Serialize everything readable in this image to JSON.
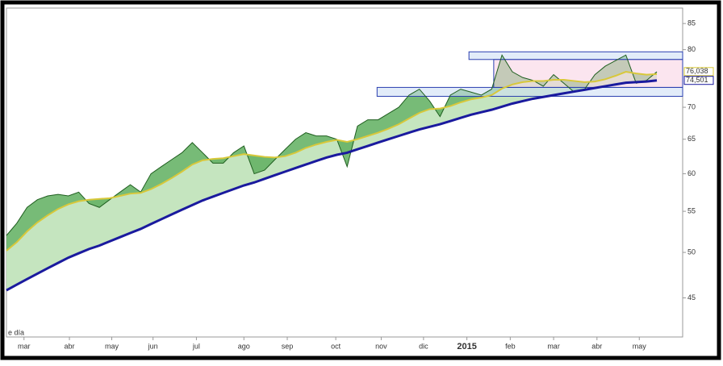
{
  "chart_data": {
    "type": "line",
    "log_scale": true,
    "ylim": [
      41.1,
      88.1
    ],
    "yticks": [
      45,
      50,
      55,
      60,
      65,
      70,
      80,
      85
    ],
    "xlim": [
      0,
      65.5
    ],
    "xticks": [
      {
        "value": 1.7,
        "label": "mar"
      },
      {
        "value": 6.1,
        "label": "abr"
      },
      {
        "value": 10.2,
        "label": "may"
      },
      {
        "value": 14.2,
        "label": "jun"
      },
      {
        "value": 18.4,
        "label": "jul"
      },
      {
        "value": 23,
        "label": "ago"
      },
      {
        "value": 27.2,
        "label": "sep"
      },
      {
        "value": 31.9,
        "label": "oct"
      },
      {
        "value": 36.3,
        "label": "nov"
      },
      {
        "value": 40.4,
        "label": "dic"
      },
      {
        "value": 44.6,
        "label": "2015"
      },
      {
        "value": 48.8,
        "label": "feb"
      },
      {
        "value": 53,
        "label": "mar"
      },
      {
        "value": 57.2,
        "label": "abr"
      },
      {
        "value": 61.3,
        "label": "may"
      }
    ],
    "series": [
      {
        "color": "#1f5e1f",
        "values": [
          52,
          53.5,
          55.5,
          56.5,
          57,
          57.2,
          57,
          57.5,
          56,
          55.5,
          56.5,
          57.5,
          58.5,
          57.5,
          60,
          61,
          62,
          63,
          64.5,
          63,
          61.5,
          61.5,
          63,
          64,
          60,
          60.5,
          62,
          63.5,
          65,
          66,
          65.5,
          65.5,
          65,
          61,
          67,
          68,
          68,
          69,
          70,
          72,
          73,
          71,
          68.5,
          72,
          73,
          72.5,
          72,
          73,
          79,
          76,
          75,
          74.5,
          73.5,
          75.5,
          74,
          72.5,
          73,
          75.5,
          77,
          78,
          79,
          74,
          74.5,
          76
        ]
      },
      {
        "color": "#d8c83a",
        "values": [
          50.2,
          51.2,
          52.5,
          53.6,
          54.5,
          55.3,
          55.9,
          56.3,
          56.5,
          56.6,
          56.7,
          57,
          57.3,
          57.4,
          57.9,
          58.6,
          59.4,
          60.3,
          61.3,
          61.9,
          62.1,
          62.2,
          62.5,
          62.8,
          62.6,
          62.4,
          62.3,
          62.5,
          63,
          63.7,
          64.2,
          64.6,
          64.9,
          64.6,
          65,
          65.5,
          66,
          66.6,
          67.3,
          68.2,
          69.1,
          69.7,
          69.8,
          70.2,
          70.8,
          71.3,
          71.6,
          72,
          73.1,
          73.8,
          74.2,
          74.4,
          74.4,
          74.6,
          74.6,
          74.4,
          74.2,
          74.3,
          74.7,
          75.3,
          76,
          75.7,
          75.5,
          75.6
        ]
      },
      {
        "color": "#1a1a9e",
        "values": [
          45.8,
          46.4,
          47,
          47.6,
          48.2,
          48.8,
          49.4,
          49.9,
          50.4,
          50.8,
          51.3,
          51.8,
          52.3,
          52.8,
          53.4,
          54,
          54.6,
          55.2,
          55.8,
          56.4,
          56.9,
          57.4,
          57.9,
          58.4,
          58.8,
          59.3,
          59.8,
          60.3,
          60.8,
          61.3,
          61.8,
          62.3,
          62.7,
          63,
          63.5,
          64,
          64.5,
          65,
          65.5,
          66,
          66.5,
          66.9,
          67.3,
          67.8,
          68.3,
          68.8,
          69.2,
          69.6,
          70.1,
          70.6,
          71,
          71.4,
          71.7,
          72,
          72.3,
          72.6,
          72.9,
          73.2,
          73.5,
          73.8,
          74.1,
          74.2,
          74.3,
          74.5
        ]
      }
    ],
    "zones": [
      {
        "x0": 44.8,
        "x1": 65.5,
        "y0": 78.2,
        "y1": 79.6,
        "color": "#cfe0f5"
      },
      {
        "x0": 35.9,
        "x1": 65.5,
        "y0": 71.8,
        "y1": 73.3,
        "color": "#cfe0f5"
      },
      {
        "x0": 47.2,
        "x1": 65.5,
        "y0": 73.3,
        "y1": 78.2,
        "color": "#f9d3e4"
      }
    ],
    "annotations": [
      {
        "value": 76.038,
        "label": "76,038",
        "color": "#d8c83a"
      },
      {
        "value": 74.501,
        "label": "74,501",
        "color": "#1a1a9e"
      }
    ],
    "note": "e día"
  }
}
